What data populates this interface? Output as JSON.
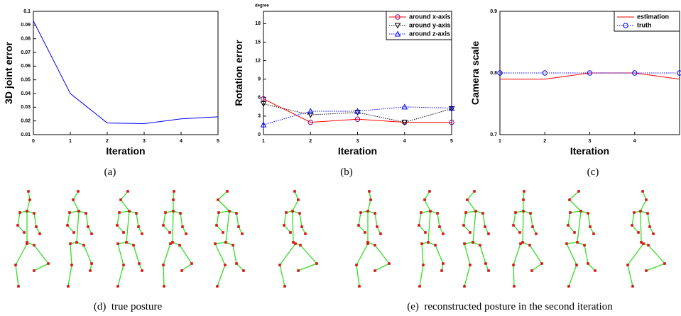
{
  "chart_data": [
    {
      "type": "line",
      "x": [
        0,
        1,
        2,
        3,
        4,
        5
      ],
      "values": [
        0.093,
        0.04,
        0.0185,
        0.018,
        0.0215,
        0.023
      ],
      "color": "#0000ff",
      "xlim": [
        0,
        5
      ],
      "xticks": [
        0,
        1,
        2,
        3,
        4,
        5
      ],
      "ylim": [
        0.01,
        0.1
      ],
      "yticks": [
        0.01,
        0.02,
        0.03,
        0.04,
        0.05,
        0.06,
        0.07,
        0.08,
        0.09,
        0.1
      ],
      "x_label": "Iteration",
      "y_label": "3D joint error"
    },
    {
      "type": "line",
      "x": [
        1,
        2,
        3,
        4,
        5
      ],
      "xlim": [
        1,
        5
      ],
      "xticks": [
        1,
        2,
        3,
        4,
        5
      ],
      "ylim": [
        0,
        20
      ],
      "yticks": [
        0,
        3,
        6,
        9,
        12,
        15,
        18
      ],
      "x_label": "Iteration",
      "y_label": "Rotation error",
      "unit_label": "degree",
      "legend": "upper right",
      "series": [
        {
          "name": "around x-axis",
          "color": "#ff0000",
          "line_style": "solid",
          "marker": "circle",
          "marker_color": "#800080",
          "values": [
            5.8,
            2.0,
            2.5,
            2.0,
            2.0
          ]
        },
        {
          "name": "around y-axis",
          "color": "#000000",
          "line_style": "dotted",
          "marker": "triangle-down",
          "marker_color": "#000000",
          "values": [
            5.0,
            3.2,
            3.6,
            2.0,
            4.2
          ]
        },
        {
          "name": "around z-axis",
          "color": "#0000ff",
          "line_style": "dotted",
          "marker": "triangle-up",
          "marker_color": "#0000ff",
          "values": [
            1.6,
            3.8,
            3.8,
            4.5,
            4.3
          ]
        }
      ]
    },
    {
      "type": "line",
      "x": [
        1,
        2,
        3,
        4,
        5
      ],
      "xlim": [
        1,
        5
      ],
      "xticks": [
        1,
        2,
        3,
        4
      ],
      "ylim": [
        0.7,
        0.9
      ],
      "yticks": [
        0.7,
        0.8,
        0.9
      ],
      "x_label": "Iteration",
      "y_label": "Camera scale",
      "legend": "upper right",
      "series": [
        {
          "name": "estimation",
          "color": "#ff0000",
          "line_style": "solid",
          "marker": "none",
          "values": [
            0.79,
            0.79,
            0.8,
            0.8,
            0.79
          ]
        },
        {
          "name": "truth",
          "color": "#0000ff",
          "line_style": "dotted",
          "marker": "circle",
          "marker_color": "#0000ff",
          "values": [
            0.8,
            0.8,
            0.8,
            0.8,
            0.8
          ]
        }
      ]
    }
  ],
  "captions": [
    "(a)",
    "(b)",
    "(c)",
    "(d)  true posture",
    "(e)  reconstructed posture in the second iteration"
  ]
}
